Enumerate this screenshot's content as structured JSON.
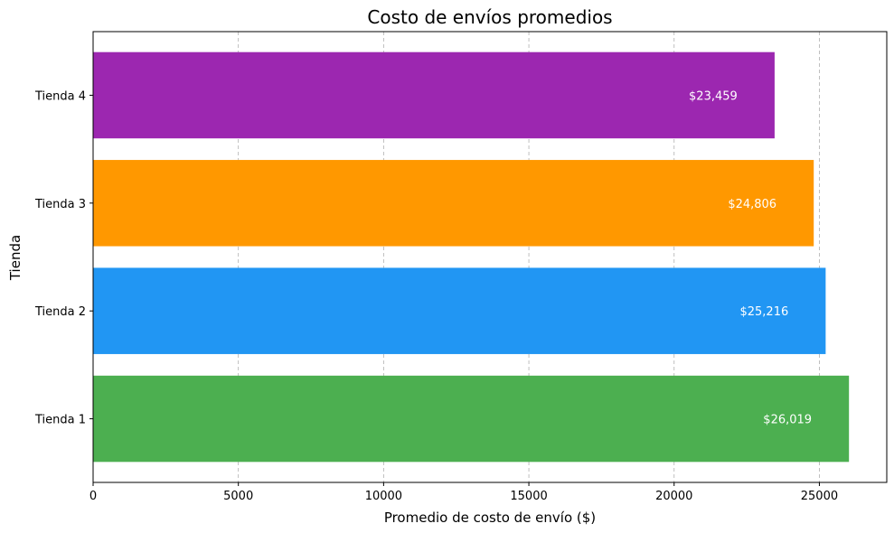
{
  "chart_data": {
    "type": "bar",
    "orientation": "horizontal",
    "title": "Costo de envíos promedios",
    "xlabel": "Promedio de costo de envío ($)",
    "ylabel": "Tienda",
    "categories": [
      "Tienda 1",
      "Tienda 2",
      "Tienda 3",
      "Tienda 4"
    ],
    "values": [
      26019,
      25216,
      24806,
      23459
    ],
    "value_labels": [
      "$26,019",
      "$25,216",
      "$24,806",
      "$23,459"
    ],
    "colors": [
      "#4caf50",
      "#2196f3",
      "#ff9800",
      "#9c27b0"
    ],
    "xlim": [
      0,
      27320
    ],
    "xticks": [
      0,
      5000,
      10000,
      15000,
      20000,
      25000
    ],
    "xtick_labels": [
      "0",
      "5000",
      "10000",
      "15000",
      "20000",
      "25000"
    ],
    "grid": "x-dashed"
  }
}
